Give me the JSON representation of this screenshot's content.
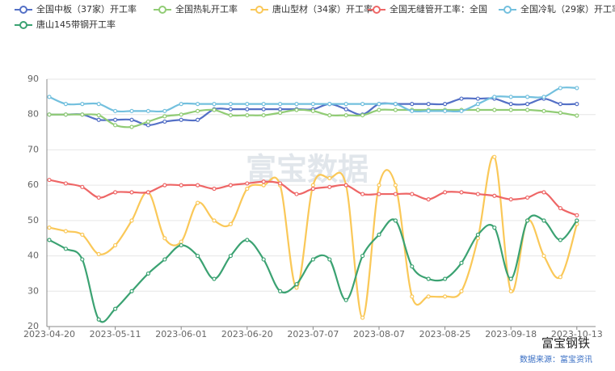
{
  "chart_data": {
    "type": "line",
    "categories": [
      "2023-04-20",
      null,
      null,
      null,
      "2023-05-11",
      null,
      null,
      null,
      "2023-06-01",
      null,
      null,
      null,
      "2023-06-20",
      null,
      null,
      null,
      "2023-07-07",
      null,
      null,
      null,
      "2023-08-07",
      null,
      null,
      null,
      "2023-08-25",
      null,
      null,
      null,
      "2023-09-18",
      null,
      null,
      null,
      "2023-10-13"
    ],
    "ylim": [
      20,
      90
    ],
    "yticks": [
      20,
      30,
      40,
      50,
      60,
      70,
      80,
      90
    ],
    "grid": true,
    "watermark": "富宝数据",
    "brand": "富宝钢铁",
    "source": "数据来源：富宝资讯",
    "series": [
      {
        "name": "全国中板（37家）开工率",
        "color": "#5470c6",
        "values": [
          80,
          80,
          80,
          78.5,
          78.5,
          78.5,
          77,
          78,
          78.5,
          78.5,
          81.5,
          81.5,
          81.5,
          81.5,
          81.5,
          81.5,
          81.5,
          83,
          81.5,
          80,
          83,
          83,
          83,
          83,
          83,
          84.5,
          84.5,
          84.5,
          83,
          83,
          84.5,
          83,
          83
        ]
      },
      {
        "name": "全国热轧开工率",
        "color": "#91cc75",
        "values": [
          80,
          80,
          80,
          79.8,
          77,
          76.5,
          78,
          79.5,
          80,
          81,
          81.3,
          79.8,
          79.8,
          79.8,
          80.5,
          81.3,
          81,
          79.8,
          79.8,
          79.8,
          81.3,
          81.3,
          81.3,
          81.3,
          81.3,
          81.3,
          81.3,
          81.3,
          81.3,
          81.3,
          81,
          80.5,
          79.7
        ]
      },
      {
        "name": "唐山型材（34家）开工率",
        "color": "#fac858",
        "values": [
          48,
          47,
          46,
          40.5,
          43,
          50,
          58,
          45,
          44,
          55,
          50,
          49,
          59,
          60,
          60,
          31,
          60,
          62,
          60,
          22.5,
          60,
          60,
          28.5,
          28.5,
          28.5,
          30,
          45,
          68,
          30,
          50,
          40,
          34,
          49
        ]
      },
      {
        "name": "全国无缝管开工率：全国",
        "color": "#ee6666",
        "values": [
          61.5,
          60.5,
          59.5,
          56.5,
          58,
          58,
          58,
          60,
          60,
          60,
          59,
          60,
          60.5,
          61,
          60.5,
          57.5,
          59,
          59.5,
          60,
          57.5,
          57.5,
          57.5,
          57.5,
          56,
          58,
          58,
          57.5,
          57,
          56,
          56.5,
          58,
          53.5,
          51.5
        ]
      },
      {
        "name": "全国冷轧（29家）开工率",
        "color": "#73c0de",
        "values": [
          85,
          83,
          83,
          83,
          81,
          81,
          81,
          81,
          83,
          83,
          83,
          83,
          83,
          83,
          83,
          83,
          83,
          83,
          83,
          83,
          83,
          83,
          81,
          81,
          81,
          81,
          83,
          85,
          85,
          85,
          85,
          87.5,
          87.5
        ]
      },
      {
        "name": "唐山145带钢开工率",
        "color": "#3ba272",
        "values": [
          44.5,
          42,
          39,
          22,
          25,
          30,
          35,
          39,
          43,
          40,
          33.5,
          40,
          44.5,
          39,
          30,
          32,
          39,
          39,
          27.5,
          40,
          46,
          50,
          37,
          33.5,
          33.5,
          38,
          46,
          48,
          33.5,
          50,
          50,
          44.5,
          50
        ]
      }
    ]
  }
}
